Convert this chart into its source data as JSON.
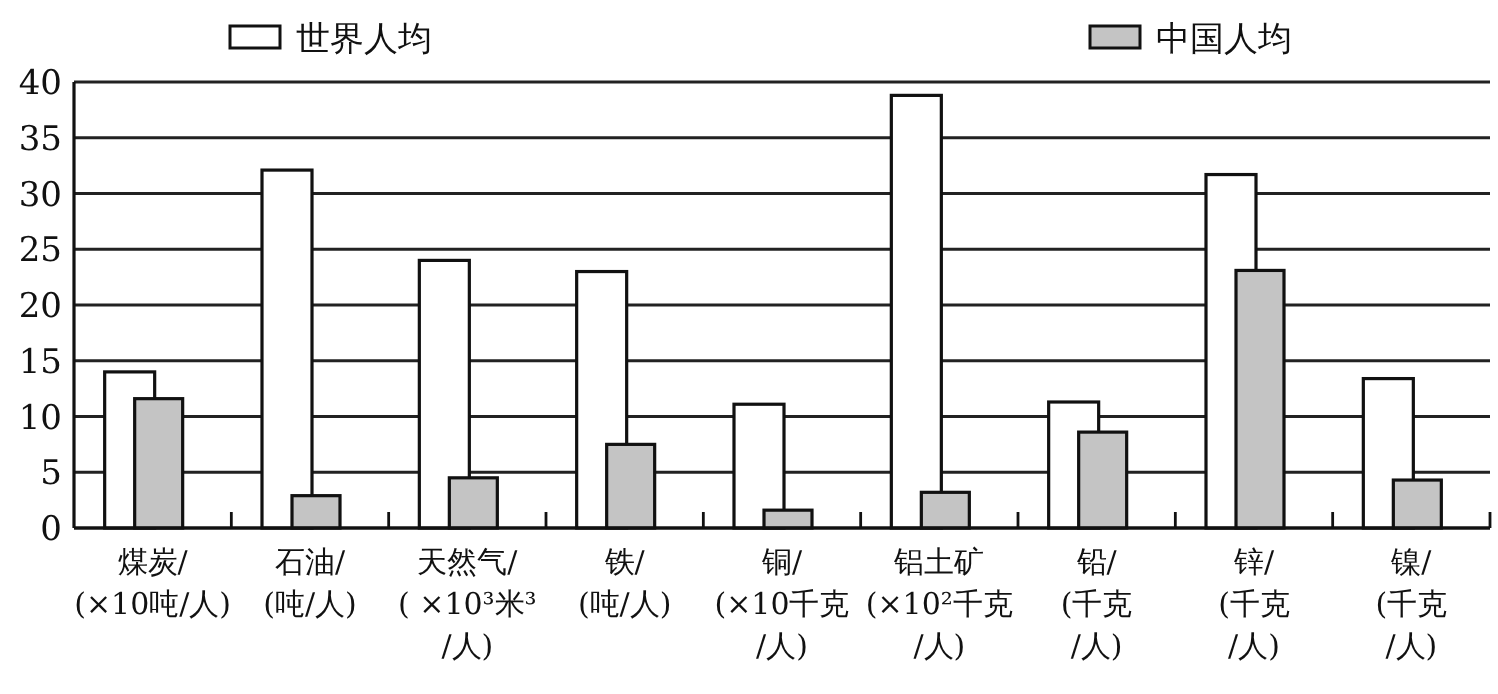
{
  "chart_data": {
    "type": "bar",
    "categories": [
      "煤炭/\n(×10吨/人)",
      "石油/\n(吨/人)",
      "天然气/\n( ×10³米³\n/人)",
      "铁/\n(吨/人)",
      "铜/\n(×10千克\n/人)",
      "铝土矿\n(×10²千克\n/人)",
      "铅/\n(千克\n/人)",
      "锌/\n(千克\n/人)",
      "镍/\n(千克\n/人)"
    ],
    "series": [
      {
        "name": "世界人均",
        "color": "#ffffff",
        "values": [
          14,
          32.1,
          24,
          23,
          11.1,
          38.8,
          11.3,
          31.7,
          13.4
        ]
      },
      {
        "name": "中国人均",
        "color": "#c4c4c4",
        "values": [
          11.6,
          2.9,
          4.5,
          7.5,
          1.6,
          3.2,
          8.6,
          23.1,
          4.3
        ]
      }
    ],
    "ylim": [
      0,
      40
    ],
    "yticks": [
      0,
      5,
      10,
      15,
      20,
      25,
      30,
      35,
      40
    ],
    "grid": "y",
    "legend": "top"
  }
}
